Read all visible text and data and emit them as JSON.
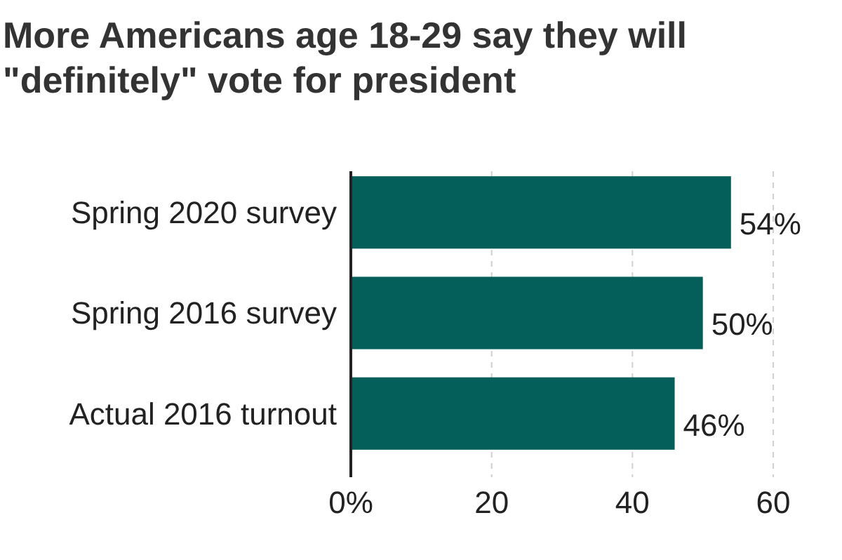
{
  "chart_data": {
    "type": "bar",
    "orientation": "horizontal",
    "title": "More Americans age 18-29 say they will \"definitely\" vote for president",
    "categories": [
      "Spring 2020 survey",
      "Spring 2016 survey",
      "Actual 2016 turnout"
    ],
    "values": [
      54,
      50,
      46
    ],
    "color": "#045f5a",
    "value_labels": [
      "54%",
      "50%",
      "46%"
    ],
    "xlim": [
      0,
      60
    ],
    "xticks": [
      {
        "value": 0,
        "label": "0%"
      },
      20,
      40,
      60
    ],
    "grid": "x"
  }
}
